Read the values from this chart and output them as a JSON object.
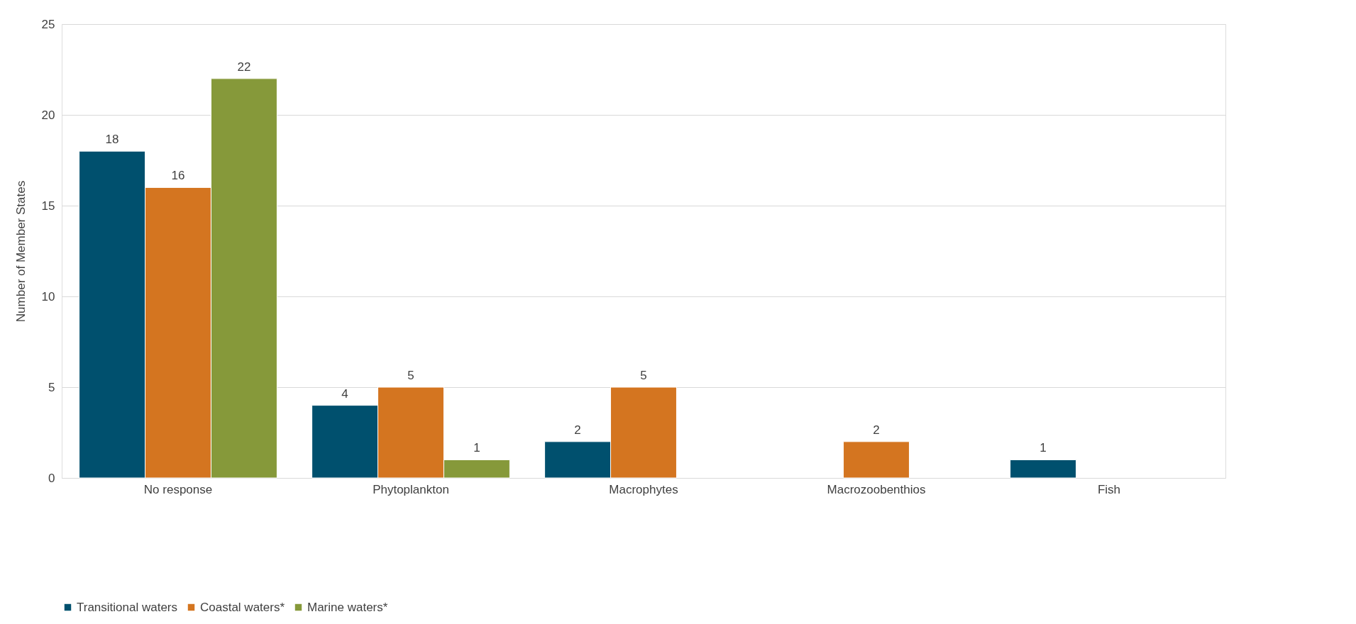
{
  "chart_data": {
    "type": "bar",
    "ylabel": "Number of Member States",
    "categories": [
      "No response",
      "Phytoplankton",
      "Macrophytes",
      "Macrozoobenthios",
      "Fish"
    ],
    "series": [
      {
        "name": "Transitional waters",
        "color": "#00506e",
        "values": [
          18,
          4,
          2,
          null,
          1
        ]
      },
      {
        "name": "Coastal waters*",
        "color": "#d47520",
        "values": [
          16,
          5,
          5,
          2,
          null
        ]
      },
      {
        "name": "Marine waters*",
        "color": "#86993a",
        "values": [
          22,
          1,
          null,
          null,
          null
        ]
      }
    ],
    "ylim": [
      0,
      25
    ],
    "yticks": [
      0,
      5,
      10,
      15,
      20,
      25
    ],
    "grid": "y",
    "legend": "bottom",
    "data_labels": true
  }
}
